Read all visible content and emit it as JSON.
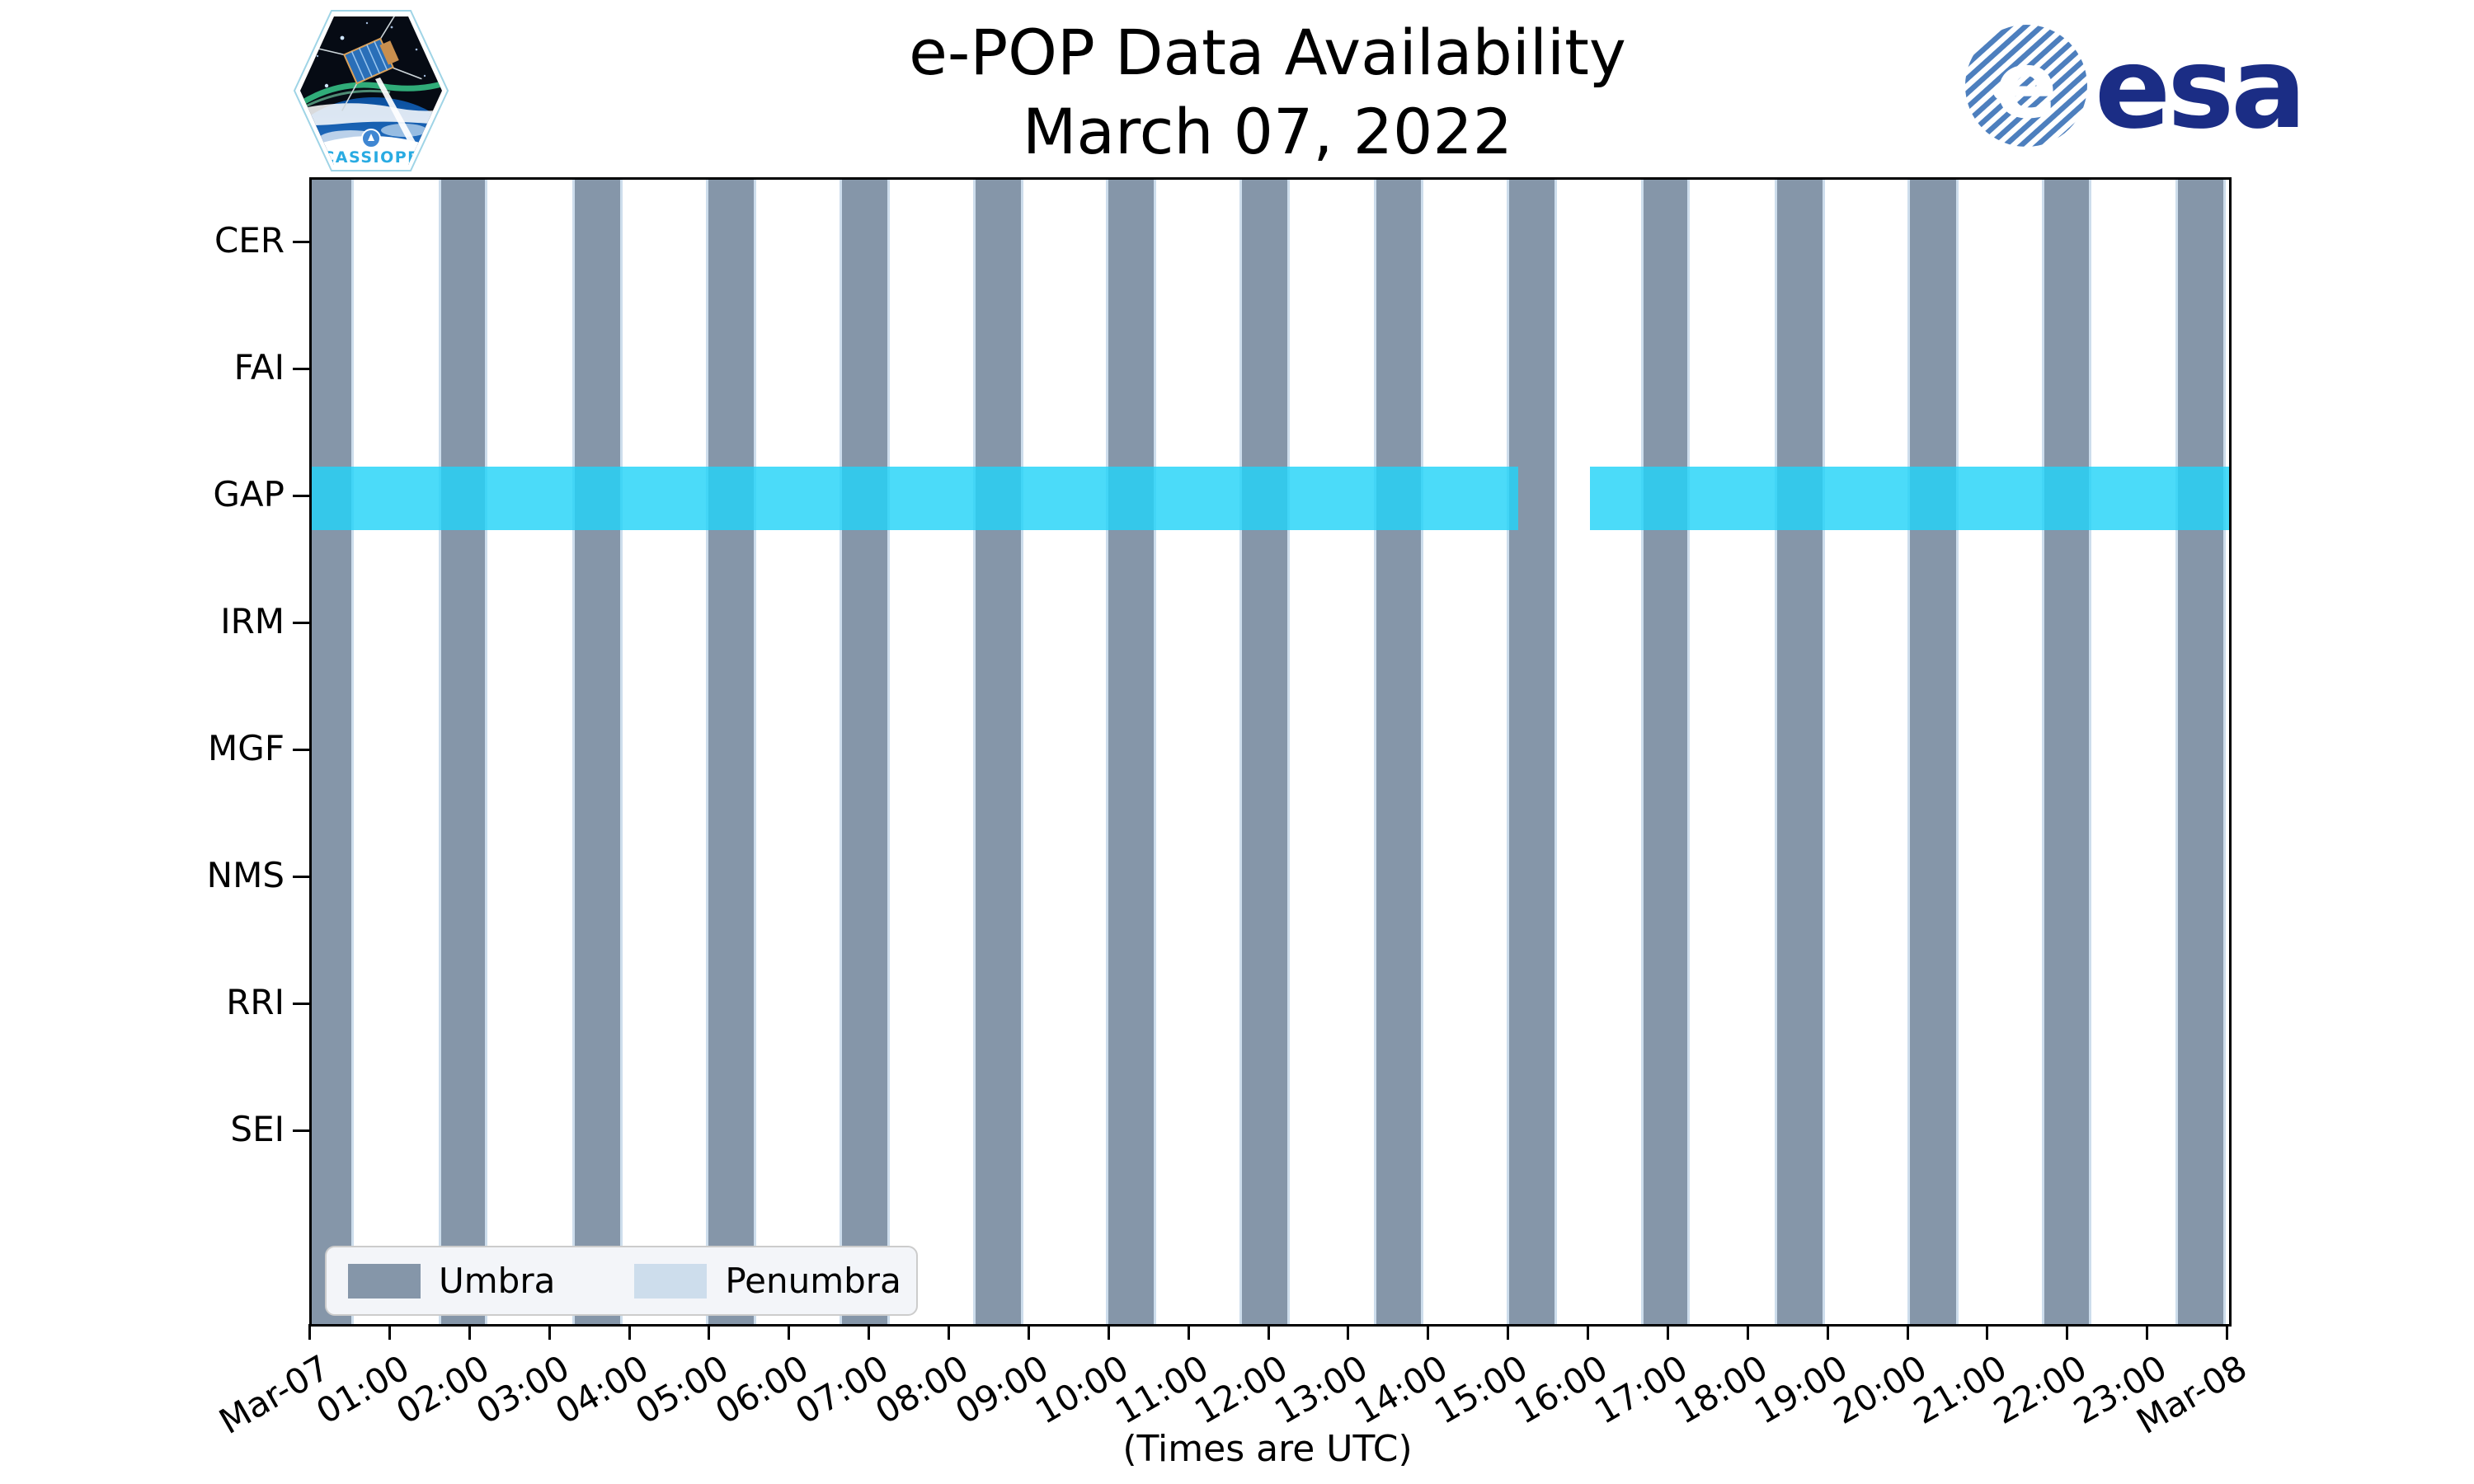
{
  "title": {
    "line1": "e-POP Data Availability",
    "line2": "March 07, 2022"
  },
  "branding": {
    "cassiope_label": "CASSIOPE",
    "esa_label": "esa"
  },
  "icons": {
    "cassiope_patch": "hexagonal-satellite-mission-patch",
    "esa_logo": "esa-striped-globe-wordmark"
  },
  "colors": {
    "umbra": "#8596a9",
    "penumbra": "#cdddec",
    "gap_availability": "rgba(35,211,248,0.82)",
    "legend_background": "#f3f5f9",
    "esa_navy": "#1b2d85",
    "esa_stripe_blue": "#4d7fbe",
    "cassiope_cyan": "#29abe2",
    "axis": "#000000"
  },
  "axes": {
    "x_tick_labels": [
      "Mar-07",
      "01:00",
      "02:00",
      "03:00",
      "04:00",
      "05:00",
      "06:00",
      "07:00",
      "08:00",
      "09:00",
      "10:00",
      "11:00",
      "12:00",
      "13:00",
      "14:00",
      "15:00",
      "16:00",
      "17:00",
      "18:00",
      "19:00",
      "20:00",
      "21:00",
      "22:00",
      "23:00",
      "Mar-08"
    ],
    "x_axis_note": "(Times are UTC)",
    "y_tick_labels": [
      "CER",
      "FAI",
      "GAP",
      "IRM",
      "MGF",
      "NMS",
      "RRI",
      "SEI"
    ]
  },
  "legend": {
    "entries": [
      {
        "label": "Umbra",
        "color": "#8596a9"
      },
      {
        "label": "Penumbra",
        "color": "#cdddec"
      }
    ],
    "position": "lower left"
  },
  "chart_data": {
    "type": "timeline",
    "title": "e-POP Data Availability",
    "subtitle": "March 07, 2022",
    "x_axis": {
      "start": "Mar-07 00:00 UTC",
      "end": "Mar-08 00:00 UTC",
      "span_hours": 24,
      "tick_interval_hours": 1,
      "note": "(Times are UTC)"
    },
    "rows": [
      "CER",
      "FAI",
      "GAP",
      "IRM",
      "MGF",
      "NMS",
      "RRI",
      "SEI"
    ],
    "series": [
      {
        "name": "GAP data availability",
        "row": "GAP",
        "color": "rgba(35,211,248,0.82)",
        "intervals_hours": [
          [
            0.0,
            15.1
          ],
          [
            16.0,
            24.0
          ]
        ],
        "intervals_utc": [
          [
            "00:00",
            "15:06"
          ],
          [
            "16:00",
            "24:00"
          ]
        ]
      }
    ],
    "shading": {
      "umbra": {
        "label": "Umbra",
        "color": "#8596a9",
        "intervals_hours": [
          [
            0.0,
            0.5
          ],
          [
            1.62,
            2.17
          ],
          [
            3.29,
            3.86
          ],
          [
            4.97,
            5.53
          ],
          [
            6.64,
            7.2
          ],
          [
            8.31,
            8.88
          ],
          [
            9.97,
            10.54
          ],
          [
            11.64,
            12.21
          ],
          [
            13.33,
            13.88
          ],
          [
            14.99,
            15.56
          ],
          [
            16.67,
            17.22
          ],
          [
            18.34,
            18.91
          ],
          [
            20.01,
            20.58
          ],
          [
            21.69,
            22.25
          ],
          [
            23.36,
            23.93
          ]
        ],
        "intervals_utc": [
          [
            "00:00",
            "00:30"
          ],
          [
            "01:37",
            "02:10"
          ],
          [
            "03:17",
            "03:52"
          ],
          [
            "04:58",
            "05:32"
          ],
          [
            "06:38",
            "07:12"
          ],
          [
            "08:19",
            "08:53"
          ],
          [
            "09:58",
            "10:32"
          ],
          [
            "11:38",
            "12:13"
          ],
          [
            "13:20",
            "13:53"
          ],
          [
            "14:59",
            "15:34"
          ],
          [
            "16:40",
            "17:13"
          ],
          [
            "18:20",
            "18:55"
          ],
          [
            "20:01",
            "20:35"
          ],
          [
            "21:41",
            "22:15"
          ],
          [
            "23:22",
            "23:56"
          ]
        ]
      },
      "penumbra": {
        "label": "Penumbra",
        "color": "#cdddec",
        "note": "thin transition strips flanking each umbra interval"
      }
    },
    "grid": false,
    "legend_position": "lower left"
  }
}
